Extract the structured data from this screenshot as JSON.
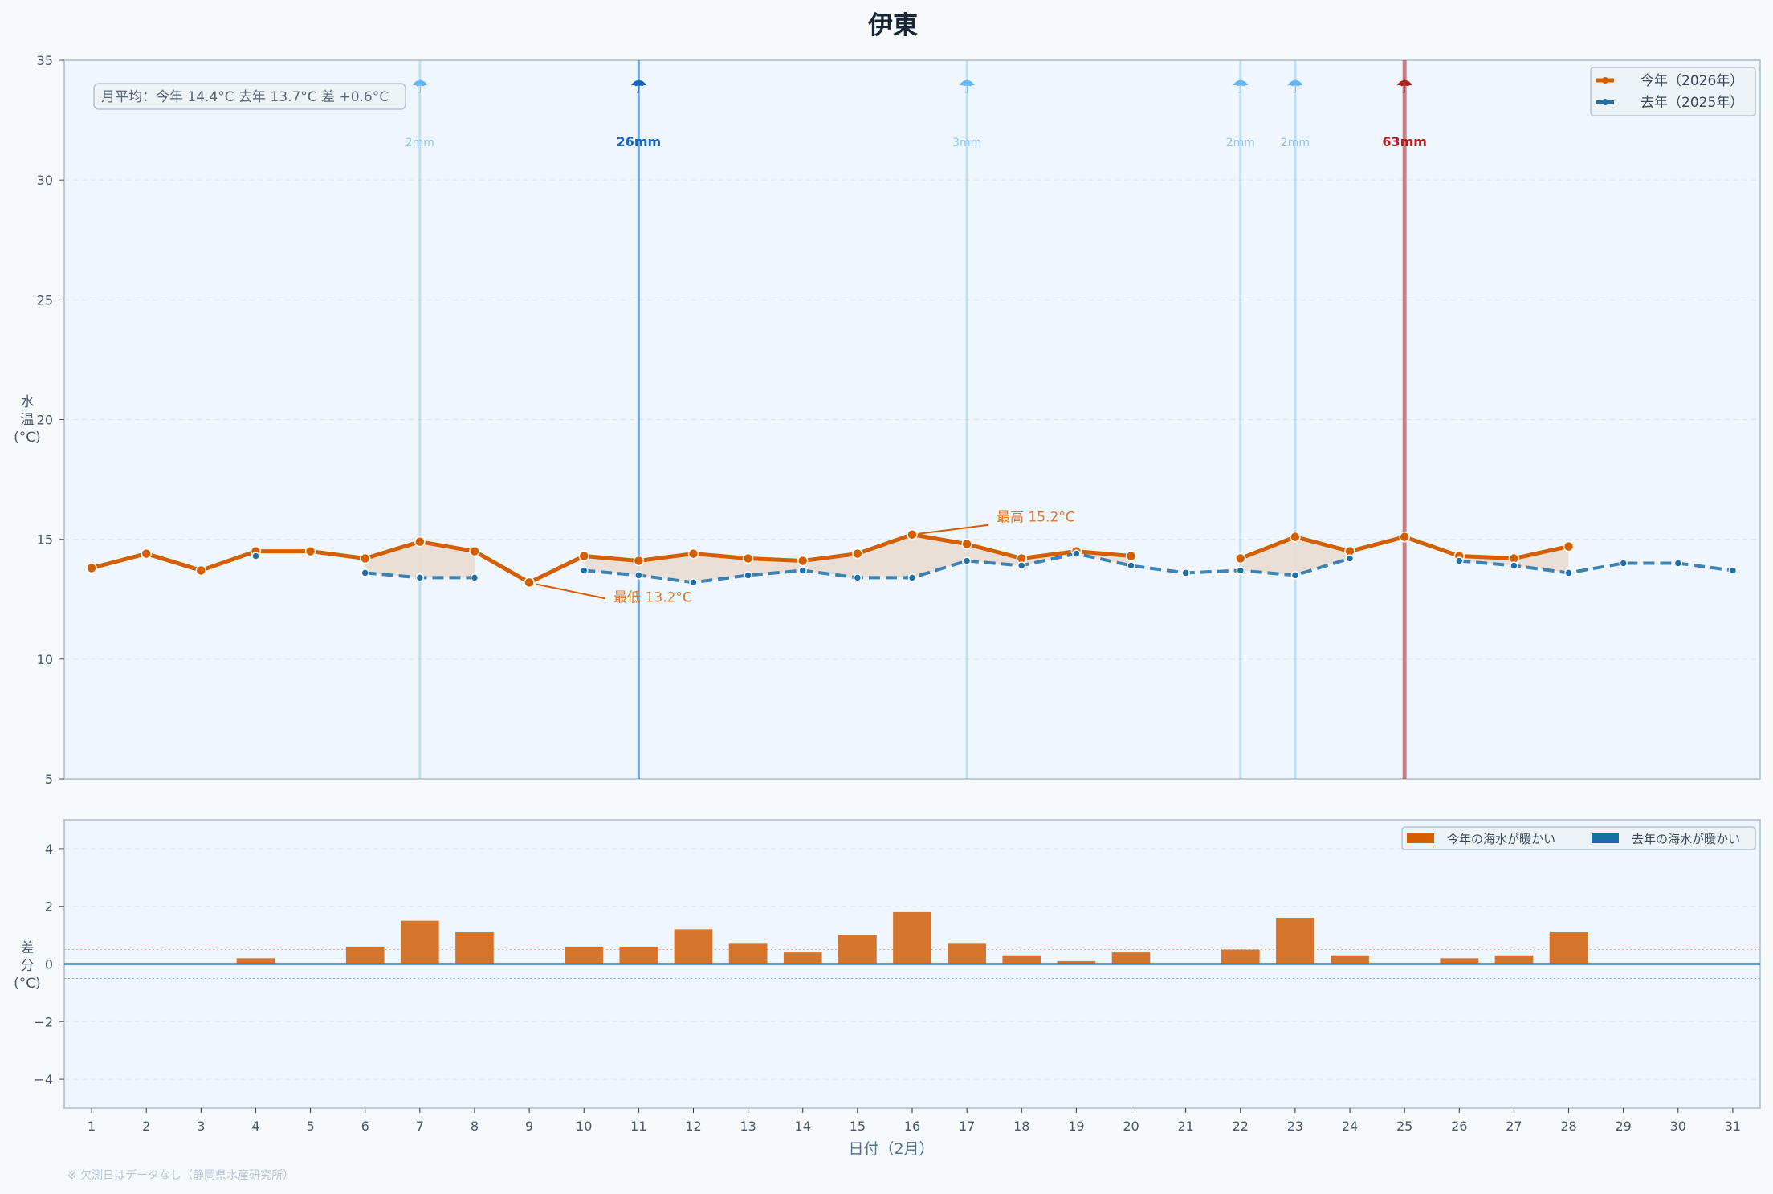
{
  "chart_data": [
    {
      "type": "line",
      "title": "伊東",
      "ylabel": "水\n温\n(°C)",
      "ylim": [
        5,
        35
      ],
      "yticks": [
        5,
        10,
        15,
        20,
        25,
        30,
        35
      ],
      "xlim": [
        0.5,
        31.5
      ],
      "x": [
        1,
        2,
        3,
        4,
        5,
        6,
        7,
        8,
        9,
        10,
        11,
        12,
        13,
        14,
        15,
        16,
        17,
        18,
        19,
        20,
        21,
        22,
        23,
        24,
        25,
        26,
        27,
        28,
        29,
        30,
        31
      ],
      "grid": true,
      "legend_position": "top-right",
      "series": [
        {
          "name": "今年（2026年）",
          "color": "#d35f00",
          "style": "solid",
          "values": [
            13.8,
            14.4,
            13.7,
            14.5,
            14.5,
            14.2,
            14.9,
            14.5,
            13.2,
            14.3,
            14.1,
            14.4,
            14.2,
            14.1,
            14.4,
            15.2,
            14.8,
            14.2,
            14.5,
            14.3,
            null,
            14.2,
            15.1,
            14.5,
            15.1,
            14.3,
            14.2,
            14.7,
            null,
            null,
            null
          ]
        },
        {
          "name": "去年（2025年）",
          "color": "#1f6fa8",
          "style": "dashed",
          "values": [
            null,
            null,
            null,
            14.3,
            null,
            13.6,
            13.4,
            13.4,
            null,
            13.7,
            13.5,
            13.2,
            13.5,
            13.7,
            13.4,
            13.4,
            14.1,
            13.9,
            14.4,
            13.9,
            13.6,
            13.7,
            13.5,
            14.2,
            null,
            14.1,
            13.9,
            13.6,
            14.0,
            14.0,
            13.7
          ]
        }
      ],
      "rain": [
        {
          "day": 7,
          "label": "2mm",
          "level": "light"
        },
        {
          "day": 11,
          "label": "26mm",
          "level": "heavy"
        },
        {
          "day": 17,
          "label": "3mm",
          "level": "light"
        },
        {
          "day": 22,
          "label": "2mm",
          "level": "light"
        },
        {
          "day": 23,
          "label": "2mm",
          "level": "light"
        },
        {
          "day": 25,
          "label": "63mm",
          "level": "extreme"
        }
      ],
      "rain_colors": {
        "light": "#64b5f6",
        "heavy": "#1565c0",
        "extreme": "#b71c1c"
      },
      "annotations": [
        {
          "day": 9,
          "value": 13.2,
          "text": "最低 13.2°C"
        },
        {
          "day": 16,
          "value": 15.2,
          "text": "最高 15.2°C"
        }
      ],
      "summary": "月平均：今年 14.4°C  去年 13.7°C  差 +0.6°C"
    },
    {
      "type": "bar",
      "ylabel": "差\n分\n(°C)",
      "xlabel": "日付（2月）",
      "ylim": [
        -5,
        5
      ],
      "yticks": [
        -4,
        -2,
        0,
        2,
        4
      ],
      "ytick_labels": [
        "−4",
        "−2",
        "0",
        "2",
        "4"
      ],
      "reference_lines": [
        0.5,
        -0.5
      ],
      "categories": [
        1,
        2,
        3,
        4,
        5,
        6,
        7,
        8,
        9,
        10,
        11,
        12,
        13,
        14,
        15,
        16,
        17,
        18,
        19,
        20,
        21,
        22,
        23,
        24,
        25,
        26,
        27,
        28,
        29,
        30,
        31
      ],
      "values": [
        null,
        null,
        null,
        0.2,
        null,
        0.6,
        1.5,
        1.1,
        null,
        0.6,
        0.6,
        1.2,
        0.7,
        0.4,
        1.0,
        1.8,
        0.7,
        0.3,
        0.1,
        0.4,
        null,
        0.5,
        1.6,
        0.3,
        null,
        0.2,
        0.3,
        1.1,
        null,
        null,
        null
      ],
      "legend_position": "top-right",
      "legend": [
        {
          "name": "今年の海水が暖かい",
          "color": "#d35f00"
        },
        {
          "name": "去年の海水が暖かい",
          "color": "#1a6ea8"
        }
      ]
    }
  ],
  "footnote": "※ 欠測日はデータなし（静岡県水産研究所）"
}
